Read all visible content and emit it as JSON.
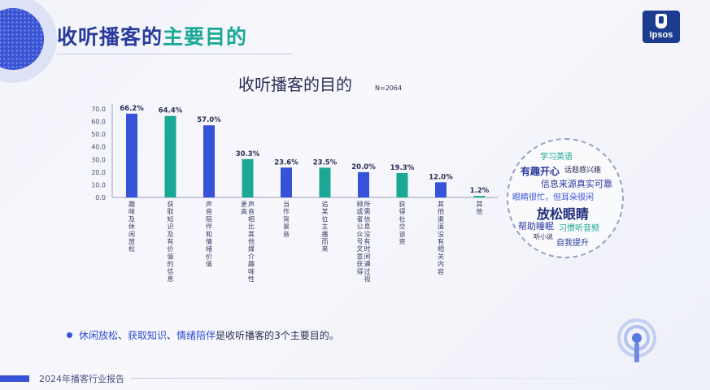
{
  "header": {
    "title_part1": "收听播客的",
    "title_part2": "主要目的",
    "logo_text": "Ipsos"
  },
  "colors": {
    "blue": "#3652d8",
    "teal": "#1aa894",
    "title_blue": "#283a9c",
    "text_dark": "#2b2f54"
  },
  "chart_data": {
    "type": "bar",
    "title": "收听播客的目的",
    "note": "N=2064",
    "categories": [
      "趣味及休闲放松",
      "获取知识及有价值的信息",
      "声音陪伴和情绪价值",
      "声音相比其他媒介趣味性更高",
      "当作背景音",
      "追某位主播而来",
      "所需信息没有时间通过视频或者公众号文章获得",
      "获得社交谈资",
      "其他渠道没有相关内容",
      "其他"
    ],
    "values": [
      66.2,
      64.4,
      57.0,
      30.3,
      23.6,
      23.5,
      20.0,
      19.3,
      12.0,
      1.2
    ],
    "value_labels": [
      "66.2%",
      "64.4%",
      "57.0%",
      "30.3%",
      "23.6%",
      "23.5%",
      "20.0%",
      "19.3%",
      "12.0%",
      "1.2%"
    ],
    "bar_colors": [
      "blue",
      "teal",
      "blue",
      "teal",
      "blue",
      "teal",
      "blue",
      "teal",
      "blue",
      "teal"
    ],
    "ylim": [
      0,
      70
    ],
    "yticks": [
      "0.0",
      "10.0",
      "20.0",
      "30.0",
      "40.0",
      "50.0",
      "60.0",
      "70.0"
    ],
    "grid": false
  },
  "word_cloud": [
    {
      "text": "学习英语",
      "size": 10,
      "color": "#1aa894"
    },
    {
      "text": "有趣开心",
      "size": 12,
      "color": "#283a9c"
    },
    {
      "text": "话题感兴趣",
      "size": 9,
      "color": "#2b2f54"
    },
    {
      "text": "信息来源真实可靠",
      "size": 11,
      "color": "#283a9c"
    },
    {
      "text": "眼睛很忙，但耳朵很闲",
      "size": 10,
      "color": "#3652d8"
    },
    {
      "text": "放松眼睛",
      "size": 16,
      "color": "#1f2d7a"
    },
    {
      "text": "帮助睡眠",
      "size": 11,
      "color": "#283a9c"
    },
    {
      "text": "习惯听音频",
      "size": 10,
      "color": "#1aa894"
    },
    {
      "text": "听小说",
      "size": 8,
      "color": "#2b2f54"
    },
    {
      "text": "自我提升",
      "size": 10,
      "color": "#283a9c"
    }
  ],
  "conclusion": {
    "hl1": "休闲放松",
    "sep1": "、",
    "hl2": "获取知识",
    "sep2": "、",
    "hl3": "情绪陪伴",
    "rest": "是收听播客的3个主要目的。"
  },
  "footer": {
    "text": "2024年播客行业报告"
  }
}
